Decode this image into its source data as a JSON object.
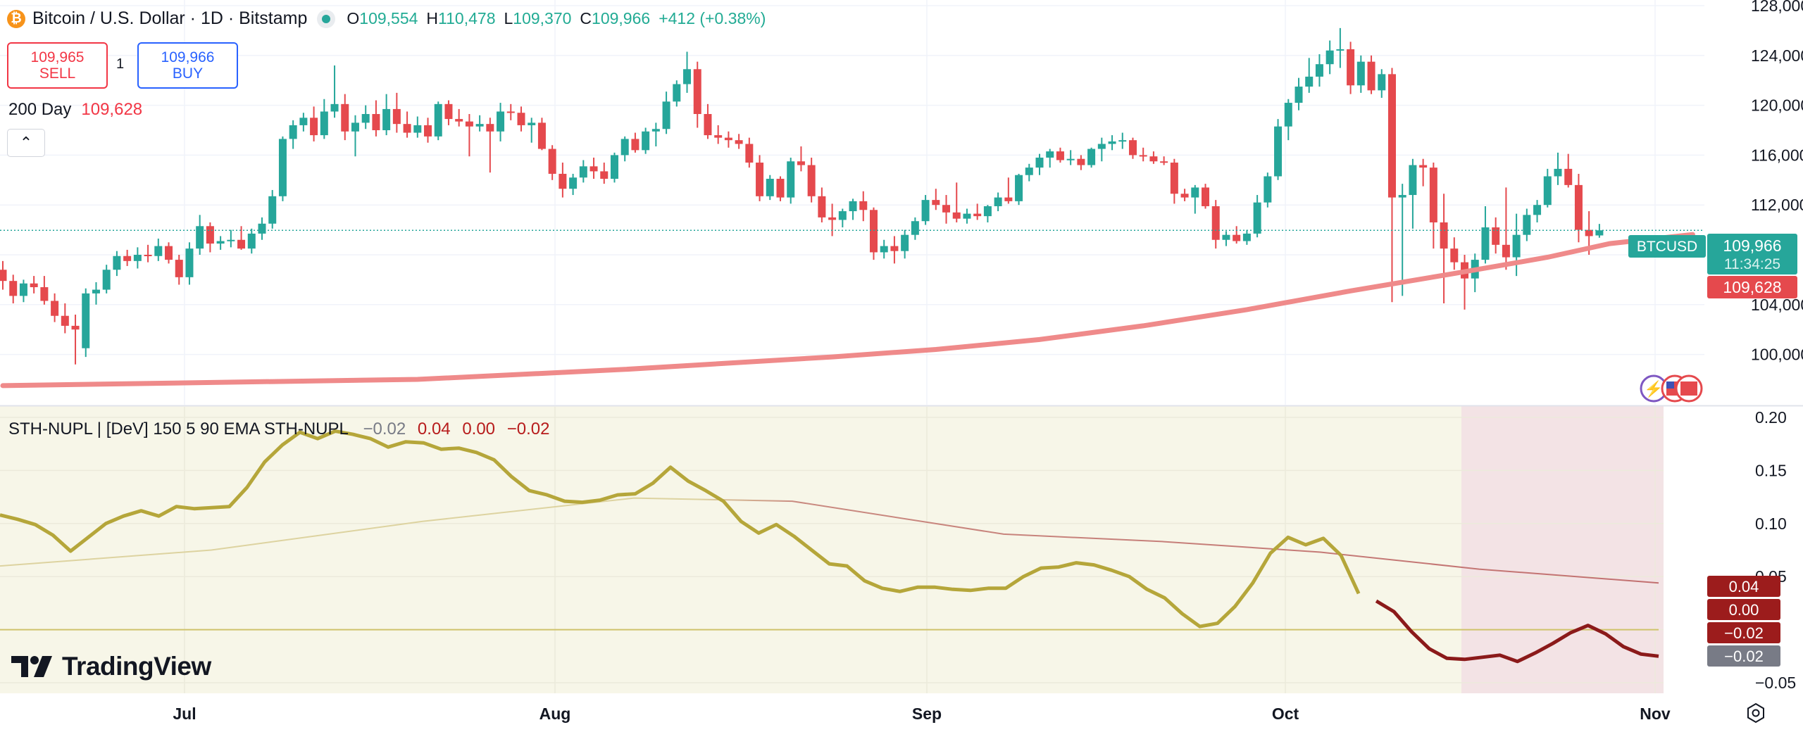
{
  "header": {
    "coin_glyph": "₿",
    "symbol_title": "Bitcoin / U.S. Dollar · 1D · Bitstamp",
    "ohlc": [
      {
        "k": "O",
        "v": "109,554"
      },
      {
        "k": "H",
        "v": "110,478"
      },
      {
        "k": "L",
        "v": "109,370"
      },
      {
        "k": "C",
        "v": "109,966"
      }
    ],
    "change": "+412 (+0.38%)"
  },
  "trade": {
    "sell_price": "109,965",
    "sell_label": "SELL",
    "buy_price": "109,966",
    "buy_label": "BUY",
    "quantity": "1"
  },
  "moving_average": {
    "name": "200 Day",
    "value": "109,628",
    "color": "#e57373"
  },
  "indicator": {
    "name": "STH-NUPL | [DeV] 150 5 90 EMA STH-NUPL",
    "values": [
      "−0.02",
      "0.04",
      "0.00",
      "−0.02"
    ]
  },
  "price_axis": {
    "ticks": [
      "128,000",
      "124,000",
      "120,000",
      "116,000",
      "112,000",
      "104,000",
      "100,000"
    ],
    "symbol_tag": "BTCUSD",
    "last_price": "109,966",
    "countdown": "11:34:25",
    "ma_price": "109,628"
  },
  "indicator_axis": {
    "ticks": [
      "0.20",
      "0.15",
      "0.10",
      "0.05",
      "−0.05"
    ],
    "badges": [
      "0.04",
      "0.00",
      "−0.02",
      "−0.02"
    ]
  },
  "time_axis": {
    "labels": [
      "Jul",
      "Aug",
      "Sep",
      "Oct",
      "Nov"
    ]
  },
  "logo": "TradingView",
  "colors": {
    "up": "#26a69a",
    "down": "#e5494d",
    "ma": "#ef8a8a",
    "nupl": "#b5a63a",
    "nupl_neg": "#8b1a1a",
    "panel_bg": "#f7f6e8",
    "panel_neg_bg": "#f3e3e5"
  },
  "chart_data": {
    "type": "candlestick",
    "interval": "1D",
    "x_months": [
      "Jul",
      "Aug",
      "Sep",
      "Oct",
      "Nov"
    ],
    "ylim": [
      98000,
      128000
    ],
    "candles": [
      [
        106800,
        107500,
        105200,
        105900
      ],
      [
        105900,
        106400,
        104100,
        104700
      ],
      [
        104700,
        106000,
        104200,
        105700
      ],
      [
        105700,
        106300,
        104900,
        105400
      ],
      [
        105400,
        106300,
        104000,
        104300
      ],
      [
        104300,
        104900,
        102600,
        103100
      ],
      [
        103100,
        104100,
        101700,
        102300
      ],
      [
        102300,
        103200,
        99200,
        102000
      ],
      [
        100500,
        105300,
        99800,
        104900
      ],
      [
        104900,
        105800,
        104000,
        105200
      ],
      [
        105200,
        107200,
        104900,
        106800
      ],
      [
        106800,
        108300,
        106300,
        107900
      ],
      [
        107900,
        108400,
        107100,
        107500
      ],
      [
        107500,
        108600,
        106900,
        108000
      ],
      [
        108000,
        108800,
        107400,
        107900
      ],
      [
        107900,
        109300,
        107500,
        108700
      ],
      [
        108700,
        109000,
        107300,
        107600
      ],
      [
        107600,
        108000,
        105600,
        106200
      ],
      [
        106200,
        109000,
        105600,
        108500
      ],
      [
        108500,
        111200,
        108000,
        110300
      ],
      [
        110300,
        110600,
        108200,
        108900
      ],
      [
        108900,
        109500,
        108400,
        109100
      ],
      [
        109100,
        110000,
        108600,
        109200
      ],
      [
        109200,
        110300,
        108400,
        108500
      ],
      [
        108500,
        110100,
        108100,
        109700
      ],
      [
        109700,
        111000,
        109200,
        110500
      ],
      [
        110500,
        113200,
        110100,
        112700
      ],
      [
        112700,
        117500,
        112300,
        117300
      ],
      [
        117300,
        118800,
        116500,
        118400
      ],
      [
        118400,
        119400,
        117900,
        119000
      ],
      [
        119000,
        119900,
        117100,
        117600
      ],
      [
        117600,
        120500,
        117300,
        119500
      ],
      [
        119500,
        123200,
        119000,
        120100
      ],
      [
        120100,
        120900,
        117200,
        117900
      ],
      [
        117900,
        119200,
        115900,
        118600
      ],
      [
        118600,
        120000,
        118100,
        119300
      ],
      [
        119300,
        120400,
        117500,
        118000
      ],
      [
        118000,
        120900,
        117600,
        119700
      ],
      [
        119700,
        121000,
        117800,
        118500
      ],
      [
        118500,
        119500,
        117400,
        117800
      ],
      [
        117800,
        119100,
        117400,
        118400
      ],
      [
        118400,
        119000,
        117000,
        117500
      ],
      [
        117500,
        120300,
        117200,
        120100
      ],
      [
        120100,
        120400,
        118400,
        118900
      ],
      [
        118900,
        119700,
        118300,
        118700
      ],
      [
        118700,
        119300,
        115900,
        118300
      ],
      [
        118300,
        119200,
        117900,
        118500
      ],
      [
        118500,
        119000,
        114600,
        117900
      ],
      [
        117900,
        120200,
        117100,
        119500
      ],
      [
        119500,
        120100,
        118800,
        119400
      ],
      [
        119400,
        119900,
        117900,
        118400
      ],
      [
        118400,
        119000,
        117000,
        118600
      ],
      [
        118600,
        119000,
        116400,
        116500
      ],
      [
        116500,
        116800,
        114000,
        114500
      ],
      [
        114500,
        115400,
        112600,
        113300
      ],
      [
        113300,
        114500,
        112800,
        114200
      ],
      [
        114200,
        115600,
        113800,
        115100
      ],
      [
        115100,
        115800,
        114100,
        114700
      ],
      [
        114700,
        115400,
        113700,
        114100
      ],
      [
        114100,
        116200,
        113800,
        116000
      ],
      [
        116000,
        117500,
        115500,
        117300
      ],
      [
        117300,
        117800,
        116200,
        116400
      ],
      [
        116400,
        118200,
        116100,
        117900
      ],
      [
        117900,
        118600,
        116700,
        118100
      ],
      [
        118100,
        121100,
        117700,
        120300
      ],
      [
        120300,
        122000,
        119900,
        121700
      ],
      [
        121700,
        124300,
        121000,
        122900
      ],
      [
        122900,
        123500,
        118200,
        119300
      ],
      [
        119300,
        120100,
        117300,
        117600
      ],
      [
        117600,
        118400,
        116900,
        117400
      ],
      [
        117400,
        117900,
        116600,
        117200
      ],
      [
        117200,
        117700,
        116500,
        116900
      ],
      [
        116900,
        117400,
        115000,
        115400
      ],
      [
        115400,
        116000,
        112300,
        112700
      ],
      [
        112700,
        114400,
        112400,
        114100
      ],
      [
        114100,
        114300,
        112300,
        112600
      ],
      [
        112600,
        115800,
        112100,
        115500
      ],
      [
        115500,
        116700,
        114700,
        115200
      ],
      [
        115200,
        115800,
        112200,
        112700
      ],
      [
        112700,
        113400,
        110600,
        111000
      ],
      [
        111000,
        112100,
        109500,
        110800
      ],
      [
        110800,
        111700,
        110200,
        111500
      ],
      [
        111500,
        112500,
        110800,
        112300
      ],
      [
        112300,
        113100,
        110700,
        111600
      ],
      [
        111600,
        111800,
        107600,
        108200
      ],
      [
        108200,
        109200,
        107700,
        108700
      ],
      [
        108700,
        109500,
        107300,
        108300
      ],
      [
        108300,
        110000,
        107700,
        109600
      ],
      [
        109600,
        111000,
        109200,
        110700
      ],
      [
        110700,
        112800,
        110400,
        112400
      ],
      [
        112400,
        113300,
        111600,
        112000
      ],
      [
        112000,
        112800,
        110500,
        111400
      ],
      [
        111400,
        113800,
        110600,
        110900
      ],
      [
        110900,
        111700,
        110500,
        111300
      ],
      [
        111300,
        112100,
        110800,
        111100
      ],
      [
        111100,
        112000,
        110600,
        111900
      ],
      [
        111900,
        113000,
        111500,
        112600
      ],
      [
        112600,
        114200,
        112100,
        112300
      ],
      [
        112300,
        114500,
        112000,
        114400
      ],
      [
        114400,
        115300,
        113900,
        115000
      ],
      [
        115000,
        116100,
        114400,
        115800
      ],
      [
        115800,
        116500,
        115000,
        116300
      ],
      [
        116300,
        116600,
        115400,
        115600
      ],
      [
        115600,
        116400,
        115200,
        115700
      ],
      [
        115700,
        116000,
        114800,
        115200
      ],
      [
        115200,
        116600,
        115000,
        116500
      ],
      [
        116500,
        117400,
        115500,
        116900
      ],
      [
        116900,
        117600,
        116400,
        117100
      ],
      [
        117100,
        117800,
        116500,
        117200
      ],
      [
        117200,
        117400,
        115700,
        116000
      ],
      [
        116000,
        116600,
        115500,
        115900
      ],
      [
        115900,
        116300,
        115300,
        115500
      ],
      [
        115500,
        115900,
        115200,
        115400
      ],
      [
        115400,
        115700,
        112100,
        112900
      ],
      [
        112900,
        113300,
        112300,
        112600
      ],
      [
        112600,
        113600,
        111300,
        113400
      ],
      [
        113400,
        113700,
        111700,
        111900
      ],
      [
        111900,
        112400,
        108500,
        109200
      ],
      [
        109200,
        109900,
        108700,
        109600
      ],
      [
        109600,
        110300,
        108900,
        109100
      ],
      [
        109100,
        110000,
        108800,
        109700
      ],
      [
        109700,
        112800,
        109400,
        112200
      ],
      [
        112200,
        114600,
        111800,
        114300
      ],
      [
        114300,
        118900,
        114000,
        118300
      ],
      [
        118300,
        120500,
        117200,
        120200
      ],
      [
        120200,
        122200,
        119600,
        121500
      ],
      [
        121500,
        123800,
        121000,
        122300
      ],
      [
        122300,
        124100,
        121500,
        123300
      ],
      [
        123300,
        125200,
        122500,
        124400
      ],
      [
        124400,
        126200,
        123000,
        124500
      ],
      [
        124500,
        125100,
        120900,
        121600
      ],
      [
        121600,
        124000,
        121000,
        123500
      ],
      [
        123500,
        124000,
        120900,
        121200
      ],
      [
        121200,
        122900,
        120600,
        122500
      ],
      [
        122500,
        123000,
        104200,
        112600
      ],
      [
        112600,
        113700,
        104700,
        112800
      ],
      [
        112800,
        115700,
        110100,
        115200
      ],
      [
        115200,
        115700,
        113500,
        115000
      ],
      [
        115000,
        115400,
        108500,
        110600
      ],
      [
        110600,
        112900,
        104100,
        108500
      ],
      [
        108500,
        109400,
        106800,
        107400
      ],
      [
        107400,
        108000,
        103600,
        106100
      ],
      [
        106100,
        108100,
        105000,
        107600
      ],
      [
        107600,
        111900,
        107300,
        110200
      ],
      [
        110200,
        111000,
        108100,
        108800
      ],
      [
        108800,
        113400,
        106800,
        107800
      ],
      [
        107800,
        111300,
        106300,
        109600
      ],
      [
        109600,
        111700,
        109100,
        111200
      ],
      [
        111200,
        112400,
        110600,
        112000
      ],
      [
        112000,
        114900,
        111800,
        114300
      ],
      [
        114300,
        116200,
        113600,
        114900
      ],
      [
        114900,
        116100,
        113400,
        113600
      ],
      [
        113600,
        114500,
        109000,
        110000
      ],
      [
        110000,
        111500,
        108000,
        109500
      ],
      [
        109554,
        110478,
        109370,
        109966
      ]
    ],
    "ma200": {
      "name": "200 Day",
      "points": [
        [
          0,
          97500
        ],
        [
          40,
          98000
        ],
        [
          60,
          98800
        ],
        [
          80,
          99800
        ],
        [
          90,
          100400
        ],
        [
          100,
          101200
        ],
        [
          110,
          102300
        ],
        [
          120,
          103600
        ],
        [
          130,
          105100
        ],
        [
          140,
          106500
        ],
        [
          149,
          107800
        ],
        [
          155,
          108900
        ],
        [
          163,
          109628
        ]
      ]
    },
    "nupl": {
      "name": "STH-NUPL",
      "ylim": [
        -0.06,
        0.21
      ],
      "points": [
        0.108,
        0.104,
        0.099,
        0.089,
        0.074,
        0.087,
        0.1,
        0.107,
        0.112,
        0.107,
        0.116,
        0.114,
        0.115,
        0.116,
        0.134,
        0.158,
        0.174,
        0.186,
        0.18,
        0.187,
        0.184,
        0.18,
        0.172,
        0.177,
        0.176,
        0.17,
        0.171,
        0.167,
        0.16,
        0.144,
        0.131,
        0.127,
        0.121,
        0.12,
        0.122,
        0.127,
        0.128,
        0.138,
        0.153,
        0.14,
        0.131,
        0.121,
        0.102,
        0.091,
        0.099,
        0.088,
        0.075,
        0.062,
        0.06,
        0.046,
        0.039,
        0.036,
        0.04,
        0.04,
        0.038,
        0.037,
        0.039,
        0.039,
        0.05,
        0.058,
        0.059,
        0.063,
        0.061,
        0.056,
        0.05,
        0.038,
        0.03,
        0.015,
        0.003,
        0.006,
        0.022,
        0.044,
        0.072,
        0.087,
        0.08,
        0.086,
        0.07,
        0.034,
        0.027,
        0.017,
        -0.002,
        -0.018,
        -0.027,
        -0.028,
        -0.026,
        -0.024,
        -0.03,
        -0.022,
        -0.013,
        -0.003,
        0.004,
        -0.004,
        -0.016,
        -0.023,
        -0.025
      ]
    },
    "nupl_ema": {
      "name": "EMA",
      "points": [
        [
          0,
          0.06
        ],
        [
          20,
          0.075
        ],
        [
          40,
          0.102
        ],
        [
          60,
          0.124
        ],
        [
          75,
          0.121
        ],
        [
          95,
          0.09
        ],
        [
          110,
          0.083
        ],
        [
          125,
          0.073
        ],
        [
          140,
          0.057
        ],
        [
          157,
          0.044
        ]
      ]
    }
  }
}
